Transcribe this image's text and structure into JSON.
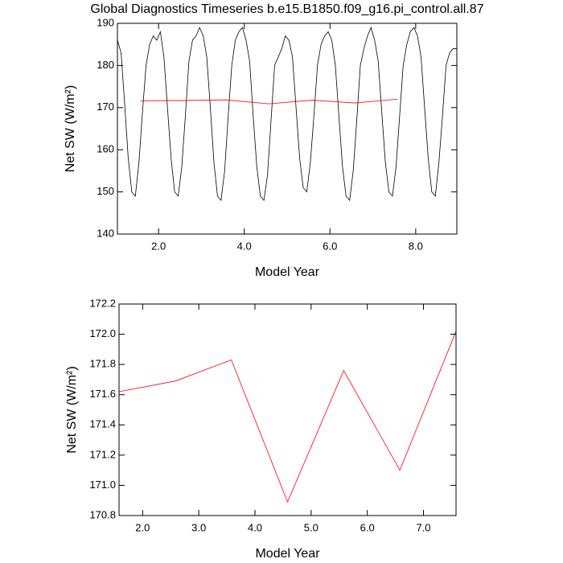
{
  "chart_data": [
    {
      "type": "line",
      "title": "Global Diagnostics Timeseries b.e15.B1850.f09_g16.pi_control.all.87",
      "x_label": "Model Year",
      "y_label": "Net SW (W/m²)",
      "xlim": [
        1.04,
        8.96
      ],
      "ylim": [
        140,
        190
      ],
      "xticks": [
        {
          "value": 2,
          "label": "2.0"
        },
        {
          "value": 4,
          "label": "4.0"
        },
        {
          "value": 6,
          "label": "6.0"
        },
        {
          "value": 8,
          "label": "8.0"
        }
      ],
      "yticks": [
        140,
        150,
        160,
        170,
        180,
        190
      ],
      "series": [
        {
          "color": "#000000",
          "x": [
            1.042,
            1.125,
            1.208,
            1.292,
            1.375,
            1.458,
            1.542,
            1.625,
            1.708,
            1.792,
            1.875,
            1.958,
            2.042,
            2.125,
            2.208,
            2.292,
            2.375,
            2.458,
            2.542,
            2.625,
            2.708,
            2.792,
            2.875,
            2.958,
            3.042,
            3.125,
            3.208,
            3.292,
            3.375,
            3.458,
            3.542,
            3.625,
            3.708,
            3.792,
            3.875,
            3.958,
            4.042,
            4.125,
            4.208,
            4.292,
            4.375,
            4.458,
            4.542,
            4.625,
            4.708,
            4.792,
            4.875,
            4.958,
            5.042,
            5.125,
            5.208,
            5.292,
            5.375,
            5.458,
            5.542,
            5.625,
            5.708,
            5.792,
            5.875,
            5.958,
            6.042,
            6.125,
            6.208,
            6.292,
            6.375,
            6.458,
            6.542,
            6.625,
            6.708,
            6.792,
            6.875,
            6.958,
            7.042,
            7.125,
            7.208,
            7.292,
            7.375,
            7.458,
            7.542,
            7.625,
            7.708,
            7.792,
            7.875,
            7.958,
            8.042,
            8.125,
            8.208,
            8.292,
            8.375,
            8.458,
            8.542,
            8.625,
            8.708,
            8.792,
            8.875,
            8.958
          ],
          "values": [
            186,
            183,
            171,
            158,
            150,
            149,
            157,
            169,
            180,
            185,
            187,
            186,
            188,
            182,
            170,
            158,
            150,
            149,
            156,
            168,
            181,
            186,
            187,
            189,
            187,
            182,
            170,
            157,
            149,
            148,
            155,
            168,
            180,
            186,
            188,
            189,
            186,
            181,
            168,
            156,
            149,
            148,
            154,
            167,
            180,
            182,
            184,
            187,
            186,
            182,
            170,
            158,
            151,
            150,
            157,
            168,
            180,
            185,
            187,
            188,
            186,
            180,
            168,
            156,
            149,
            148,
            155,
            167,
            180,
            184,
            187,
            189,
            186,
            181,
            169,
            157,
            150,
            149,
            156,
            168,
            180,
            185,
            188,
            189,
            187,
            182,
            170,
            158,
            150,
            149,
            157,
            168,
            180,
            183,
            184,
            184
          ]
        },
        {
          "color": "#ff0000",
          "x": [
            1.58,
            2.58,
            3.58,
            4.58,
            5.58,
            6.58,
            7.58
          ],
          "values": [
            171.62,
            171.69,
            171.83,
            170.89,
            171.76,
            171.1,
            172.02
          ]
        }
      ]
    },
    {
      "type": "line",
      "x_label": "Model Year",
      "y_label": "Net SW (W/m²)",
      "xlim": [
        1.58,
        7.58
      ],
      "ylim": [
        170.8,
        172.2
      ],
      "xticks": [
        {
          "value": 2,
          "label": "2.0"
        },
        {
          "value": 3,
          "label": "3.0"
        },
        {
          "value": 4,
          "label": "4.0"
        },
        {
          "value": 5,
          "label": "5.0"
        },
        {
          "value": 6,
          "label": "6.0"
        },
        {
          "value": 7,
          "label": "7.0"
        }
      ],
      "yticks": [
        170.8,
        {
          "value": 171,
          "label": "171.0"
        },
        171.2,
        171.4,
        171.6,
        171.8,
        {
          "value": 172,
          "label": "172.0"
        },
        172.2
      ],
      "series": [
        {
          "color": "#ff0000",
          "x": [
            1.58,
            2.58,
            3.58,
            4.58,
            5.58,
            6.58,
            7.58
          ],
          "values": [
            171.62,
            171.69,
            171.83,
            170.89,
            171.76,
            171.1,
            172.02
          ]
        }
      ]
    }
  ]
}
